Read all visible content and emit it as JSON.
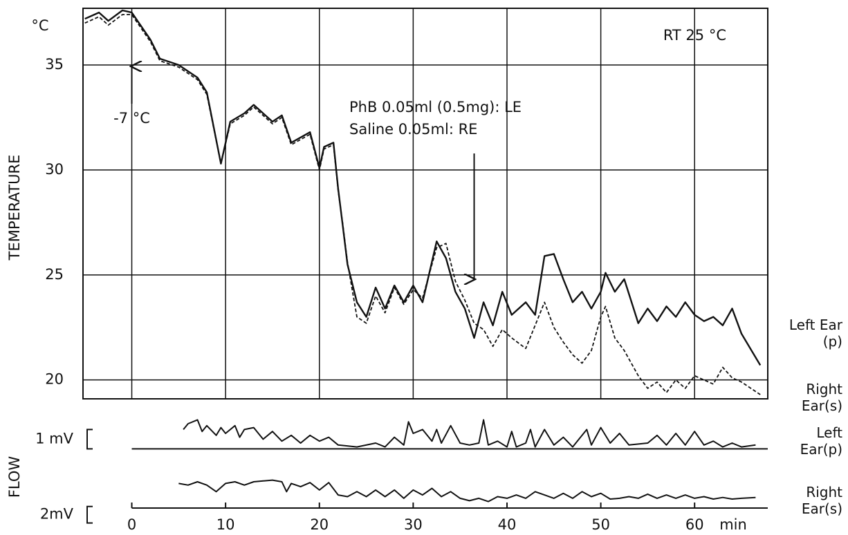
{
  "chart_data": [
    {
      "type": "line",
      "ylabel": "TEMPERATURE",
      "yunit": "°C",
      "xlim": [
        -5.2,
        67.8
      ],
      "ylim": [
        19.1,
        37.7
      ],
      "yticks": [
        20,
        25,
        30,
        35
      ],
      "grid": true,
      "x": [
        -5,
        -3.5,
        -2.5,
        -1,
        0,
        2,
        3,
        5,
        7,
        8,
        9.5,
        10.5,
        12,
        13,
        15,
        16,
        17,
        19,
        20,
        20.5,
        21.5,
        22,
        22.5,
        23,
        24,
        25,
        26,
        27,
        28,
        29,
        30,
        31,
        32.5,
        33.5,
        34.5,
        35.5,
        36.5,
        37.5,
        38.5,
        39.5,
        40.5,
        42,
        43,
        44,
        45,
        46,
        47,
        48,
        49,
        50,
        50.5,
        51.5,
        52.5,
        54,
        55,
        56,
        57,
        58,
        59,
        60,
        61,
        62,
        63,
        64,
        65,
        67
      ],
      "series": [
        {
          "name": "Left Ear (p)",
          "color": "#111111",
          "style": "solid",
          "values": [
            37.2,
            37.5,
            37.1,
            37.6,
            37.5,
            36.2,
            35.3,
            35.0,
            34.4,
            33.7,
            30.3,
            32.3,
            32.7,
            33.1,
            32.3,
            32.6,
            31.3,
            31.8,
            30.1,
            31.1,
            31.3,
            29.1,
            27.3,
            25.5,
            23.7,
            23.0,
            24.4,
            23.4,
            24.5,
            23.7,
            24.5,
            23.7,
            26.6,
            25.8,
            24.2,
            23.4,
            22.0,
            23.7,
            22.6,
            24.2,
            23.1,
            23.7,
            23.1,
            25.9,
            26.0,
            24.8,
            23.7,
            24.2,
            23.4,
            24.2,
            25.1,
            24.2,
            24.8,
            22.7,
            23.4,
            22.8,
            23.5,
            23.0,
            23.7,
            23.1,
            22.8,
            23.0,
            22.6,
            23.4,
            22.2,
            20.7
          ]
        },
        {
          "name": "Right Ear(s)",
          "color": "#111111",
          "style": "dashed",
          "values": [
            37.0,
            37.3,
            36.9,
            37.4,
            37.4,
            36.1,
            35.2,
            34.9,
            34.3,
            33.6,
            30.3,
            32.2,
            32.6,
            33.0,
            32.2,
            32.5,
            31.2,
            31.7,
            30.0,
            31.0,
            31.2,
            29.0,
            27.4,
            25.6,
            23.0,
            22.7,
            24.0,
            23.2,
            24.4,
            23.6,
            24.3,
            23.9,
            26.3,
            26.5,
            24.7,
            23.8,
            22.7,
            22.4,
            21.6,
            22.4,
            22.0,
            21.5,
            22.6,
            23.7,
            22.5,
            21.8,
            21.2,
            20.8,
            21.4,
            23.0,
            23.5,
            22.0,
            21.4,
            20.2,
            19.6,
            19.9,
            19.4,
            20.0,
            19.6,
            20.2,
            20.0,
            19.8,
            20.6,
            20.1,
            19.9,
            19.3
          ]
        }
      ],
      "annotations": [
        {
          "text": "RT 25 °C"
        },
        {
          "text": "-7 °C",
          "x": 0
        },
        {
          "text": [
            "PhB 0.05ml (0.5mg): LE",
            "Saline 0.05ml: RE"
          ],
          "x": 36.5
        }
      ]
    },
    {
      "type": "line",
      "ylabel": "FLOW",
      "xlabel": "min",
      "xlim": [
        -5.2,
        67.8
      ],
      "xticks": [
        0,
        10,
        20,
        30,
        40,
        50,
        60
      ],
      "series": [
        {
          "name": "Left Ear(p)",
          "color": "#111111",
          "ylim": [
            -0.2,
            2.3
          ],
          "scale_bar": {
            "value": 1,
            "label": "1 mV"
          },
          "x": [
            5.5,
            6,
            7,
            7.5,
            8,
            9,
            9.5,
            10,
            11,
            11.5,
            12,
            13,
            14,
            15,
            16,
            17,
            18,
            19,
            20,
            21,
            22,
            24,
            26,
            27,
            28,
            29,
            29.5,
            30,
            31,
            32,
            32.5,
            33,
            34,
            35,
            36,
            37,
            37.5,
            38,
            39,
            40,
            40.5,
            41,
            42,
            42.5,
            43,
            44,
            45,
            46,
            47,
            48.5,
            49,
            50,
            51,
            52,
            53,
            55,
            56,
            57,
            58,
            59,
            60,
            61,
            62,
            63,
            64,
            65,
            66.5
          ],
          "values": [
            1.0,
            1.3,
            1.5,
            0.9,
            1.2,
            0.7,
            1.1,
            0.8,
            1.2,
            0.6,
            1.0,
            1.1,
            0.5,
            0.9,
            0.4,
            0.7,
            0.3,
            0.7,
            0.4,
            0.6,
            0.2,
            0.1,
            0.3,
            0.1,
            0.6,
            0.2,
            1.4,
            0.8,
            1.0,
            0.4,
            1.0,
            0.3,
            1.2,
            0.3,
            0.2,
            0.3,
            1.5,
            0.2,
            0.4,
            0.1,
            0.9,
            0.1,
            0.3,
            1.0,
            0.1,
            1.0,
            0.2,
            0.6,
            0.1,
            1.0,
            0.2,
            1.1,
            0.3,
            0.8,
            0.2,
            0.3,
            0.7,
            0.2,
            0.8,
            0.2,
            0.9,
            0.2,
            0.4,
            0.1,
            0.3,
            0.1,
            0.2
          ]
        },
        {
          "name": "Right Ear(s)",
          "color": "#111111",
          "ylim": [
            -0.7,
            8.1
          ],
          "scale_bar": {
            "value": 2,
            "label": "2mV"
          },
          "x": [
            5,
            6,
            7,
            8,
            9,
            10,
            11,
            12,
            13,
            14,
            15,
            16,
            16.5,
            17,
            18,
            19,
            20,
            21,
            22,
            23,
            24,
            25,
            26,
            27,
            28,
            29,
            30,
            31,
            32,
            33,
            34,
            35,
            36,
            37,
            38,
            39,
            40,
            41,
            42,
            43,
            44,
            45,
            46,
            47,
            48,
            49,
            50,
            51,
            52,
            53,
            54,
            55,
            56,
            57,
            58,
            59,
            60,
            61,
            62,
            63,
            64,
            65,
            66.5
          ],
          "values": [
            4.8,
            4.6,
            5.0,
            4.6,
            3.8,
            4.8,
            5.0,
            4.6,
            5.0,
            5.1,
            5.2,
            5.0,
            3.8,
            4.8,
            4.4,
            4.9,
            4.0,
            4.9,
            3.4,
            3.2,
            3.8,
            3.2,
            4.0,
            3.2,
            4.0,
            3.0,
            4.0,
            3.4,
            4.2,
            3.2,
            3.8,
            3.0,
            2.7,
            3.0,
            2.6,
            3.2,
            3.0,
            3.4,
            3.0,
            3.8,
            3.4,
            3.0,
            3.6,
            3.0,
            3.8,
            3.2,
            3.6,
            2.9,
            3.0,
            3.2,
            3.0,
            3.5,
            3.0,
            3.4,
            3.0,
            3.4,
            3.0,
            3.2,
            2.9,
            3.1,
            2.9,
            3.0,
            3.1
          ]
        }
      ]
    }
  ]
}
